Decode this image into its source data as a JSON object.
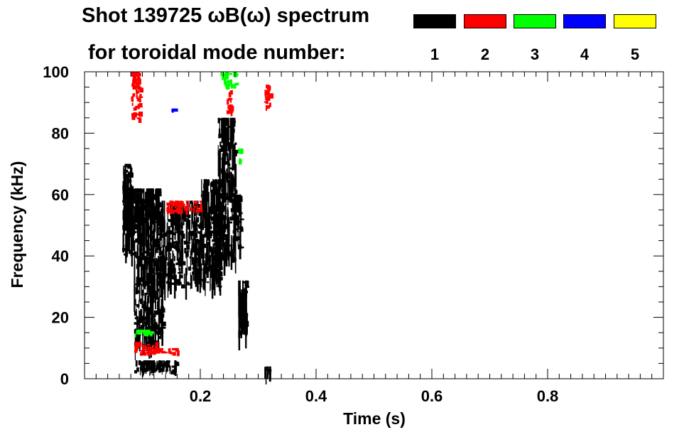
{
  "chart_data": {
    "type": "heatmap",
    "title": "Shot 139725 ωB(ω) spectrum",
    "subtitle": "for toroidal mode number:",
    "xlabel": "Time (s)",
    "ylabel": "Frequency (kHz)",
    "xlim": [
      0.0,
      1.0
    ],
    "ylim": [
      0,
      100
    ],
    "x_ticks": [
      0.2,
      0.4,
      0.6,
      0.8
    ],
    "x_tick_labels": [
      "0.2",
      "0.4",
      "0.6",
      "0.8"
    ],
    "y_ticks": [
      0,
      20,
      40,
      60,
      80,
      100
    ],
    "y_tick_labels": [
      "0",
      "20",
      "40",
      "60",
      "80",
      "100"
    ],
    "legend": [
      {
        "label": "1",
        "color": "#000000"
      },
      {
        "label": "2",
        "color": "#ff0000"
      },
      {
        "label": "3",
        "color": "#00ff00"
      },
      {
        "label": "4",
        "color": "#0000ff"
      },
      {
        "label": "5",
        "color": "#ffff00"
      }
    ],
    "series": [
      {
        "name": "n=1",
        "color": "#000000",
        "regions": [
          {
            "t": [
              0.065,
              0.08
            ],
            "f": [
              40,
              70
            ]
          },
          {
            "t": [
              0.08,
              0.13
            ],
            "f": [
              40,
              62
            ]
          },
          {
            "t": [
              0.085,
              0.135
            ],
            "f": [
              10,
              40
            ]
          },
          {
            "t": [
              0.13,
              0.2
            ],
            "f": [
              30,
              58
            ]
          },
          {
            "t": [
              0.2,
              0.235
            ],
            "f": [
              30,
              65
            ]
          },
          {
            "t": [
              0.23,
              0.26
            ],
            "f": [
              38,
              85
            ]
          },
          {
            "t": [
              0.255,
              0.27
            ],
            "f": [
              42,
              60
            ]
          },
          {
            "t": [
              0.265,
              0.28
            ],
            "f": [
              14,
              32
            ]
          },
          {
            "t": [
              0.085,
              0.16
            ],
            "f": [
              2,
              6
            ]
          },
          {
            "t": [
              0.31,
              0.32
            ],
            "f": [
              0,
              4
            ]
          }
        ]
      },
      {
        "name": "n=2",
        "color": "#ff0000",
        "regions": [
          {
            "t": [
              0.08,
              0.095
            ],
            "f": [
              84,
              100
            ]
          },
          {
            "t": [
              0.245,
              0.255
            ],
            "f": [
              86,
              94
            ]
          },
          {
            "t": [
              0.31,
              0.32
            ],
            "f": [
              88,
              96
            ]
          },
          {
            "t": [
              0.085,
              0.125
            ],
            "f": [
              8,
              12
            ]
          },
          {
            "t": [
              0.13,
              0.16
            ],
            "f": [
              8,
              10
            ]
          },
          {
            "t": [
              0.14,
              0.2
            ],
            "f": [
              54,
              58
            ]
          }
        ]
      },
      {
        "name": "n=3",
        "color": "#00ff00",
        "regions": [
          {
            "t": [
              0.235,
              0.26
            ],
            "f": [
              95,
              100
            ]
          },
          {
            "t": [
              0.085,
              0.12
            ],
            "f": [
              14,
              16
            ]
          },
          {
            "t": [
              0.265,
              0.27
            ],
            "f": [
              70,
              75
            ]
          }
        ]
      },
      {
        "name": "n=4",
        "color": "#0000ff",
        "regions": [
          {
            "t": [
              0.15,
              0.155
            ],
            "f": [
              87,
              88
            ]
          }
        ]
      },
      {
        "name": "n=5",
        "color": "#ffff00",
        "regions": []
      }
    ]
  }
}
